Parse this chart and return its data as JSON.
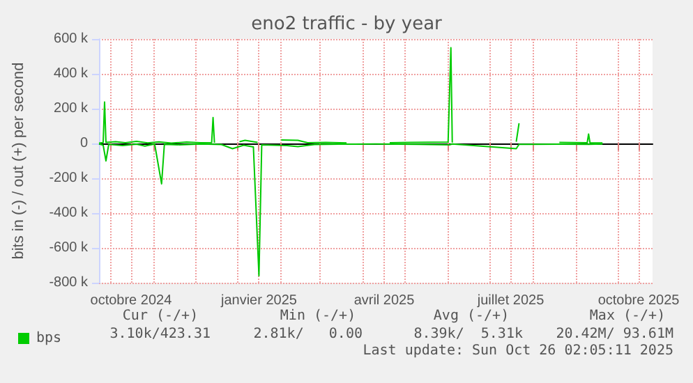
{
  "chart_data": {
    "type": "line",
    "title": "eno2 traffic - by year",
    "ylabel": "bits in (-) / out (+) per second",
    "xlim": [
      "2024-09-23",
      "2025-10-26"
    ],
    "xticks": [
      {
        "value": "2024-10-01",
        "label": null
      },
      {
        "value": "2024-10-16",
        "label": "octobre 2024"
      },
      {
        "value": "2024-11-01",
        "label": null
      },
      {
        "value": "2024-12-01",
        "label": null
      },
      {
        "value": "2025-01-01",
        "label": null
      },
      {
        "value": "2025-01-16",
        "label": "janvier 2025"
      },
      {
        "value": "2025-02-01",
        "label": null
      },
      {
        "value": "2025-03-01",
        "label": null
      },
      {
        "value": "2025-04-01",
        "label": null
      },
      {
        "value": "2025-04-16",
        "label": "avril 2025"
      },
      {
        "value": "2025-05-01",
        "label": null
      },
      {
        "value": "2025-06-01",
        "label": null
      },
      {
        "value": "2025-07-01",
        "label": null
      },
      {
        "value": "2025-07-16",
        "label": "juillet 2025"
      },
      {
        "value": "2025-08-01",
        "label": null
      },
      {
        "value": "2025-09-01",
        "label": null
      },
      {
        "value": "2025-10-01",
        "label": null
      },
      {
        "value": "2025-10-16",
        "label": "octobre 2025"
      }
    ],
    "ylim": [
      -800000,
      600000
    ],
    "yticks": [
      {
        "value": -800000,
        "label": "-800 k"
      },
      {
        "value": -600000,
        "label": "-600 k"
      },
      {
        "value": -400000,
        "label": "-400 k"
      },
      {
        "value": -200000,
        "label": "-200 k"
      },
      {
        "value": 0,
        "label": "0"
      },
      {
        "value": 200000,
        "label": "200 k"
      },
      {
        "value": 400000,
        "label": "400 k"
      },
      {
        "value": 600000,
        "label": "600 k"
      }
    ],
    "grid": true,
    "legend": "bottom left",
    "marker": "none",
    "series": [
      {
        "name": "bps",
        "color": "#00cc00",
        "x": [
          "2024-09-23",
          "2024-09-26",
          "2024-09-27",
          "2024-09-28",
          "2024-10-05",
          "2024-10-12",
          "2024-10-20",
          "2024-10-28",
          "2024-11-05",
          "2024-11-14",
          "2024-11-25",
          "2024-12-05",
          "2024-12-13",
          "2024-12-14",
          "2024-12-15",
          "2024-12-25",
          "2025-01-02",
          "2025-01-06",
          "2025-01-15",
          "2025-01-25",
          "2025-02-01",
          "2025-02-13",
          "2025-02-20",
          "2025-03-05",
          "2025-03-20",
          "2025-04-05",
          "2025-04-20",
          "2025-05-05",
          "2025-06-01",
          "2025-06-03",
          "2025-06-04",
          "2025-06-05",
          "2025-07-20",
          "2025-07-22",
          "2025-07-23",
          "2025-08-20",
          "2025-09-09",
          "2025-09-10",
          "2025-09-11",
          "2025-09-20"
        ],
        "values": [
          2000,
          5000,
          238000,
          6000,
          10000,
          4000,
          12000,
          3000,
          9000,
          2000,
          8000,
          4000,
          5000,
          149000,
          4000,
          null,
          10000,
          18000,
          6000,
          null,
          20000,
          18000,
          4000,
          6000,
          3000,
          null,
          4000,
          6000,
          8000,
          550000,
          5000,
          null,
          10000,
          116000,
          null,
          6000,
          4000,
          54000,
          4000,
          3000
        ]
      },
      {
        "color": "#00c800",
        "x": [
          "2024-09-23",
          "2024-09-26",
          "2024-09-28",
          "2024-09-30",
          "2024-10-10",
          "2024-10-20",
          "2024-10-26",
          "2024-11-02",
          "2024-11-07",
          "2024-11-09",
          "2024-11-20",
          "2024-12-05",
          "2024-12-20",
          "2024-12-28",
          "2025-01-05",
          "2025-01-12",
          "2025-01-16",
          "2025-01-18",
          "2025-02-05",
          "2025-02-13",
          "2025-02-25",
          "2025-03-15",
          "2025-04-10",
          "2025-05-10",
          "2025-06-02",
          "2025-06-04",
          "2025-07-20",
          "2025-07-22",
          "2025-08-20",
          "2025-09-10",
          "2025-09-20"
        ],
        "values": [
          -2000,
          -10000,
          -100000,
          -5000,
          -12000,
          -4000,
          -15000,
          -3000,
          -232000,
          -5000,
          -8000,
          -3000,
          -6000,
          -30000,
          -10000,
          -20000,
          -760000,
          -8000,
          -12000,
          -18000,
          -6000,
          -4000,
          -3000,
          -5000,
          -8000,
          -3000,
          -30000,
          -5000,
          -4000,
          -5000,
          -3000
        ]
      }
    ],
    "annotations": [
      "Cur (-/+)",
      "Min (-/+)",
      "Avg (-/+)",
      "Max (-/+)",
      "3.10k/423.31",
      "2.81k/   0.00",
      "8.39k/  5.31k",
      "20.42M/ 93.61M",
      "Last update: Sun Oct 26 02:05:11 2025"
    ]
  }
}
